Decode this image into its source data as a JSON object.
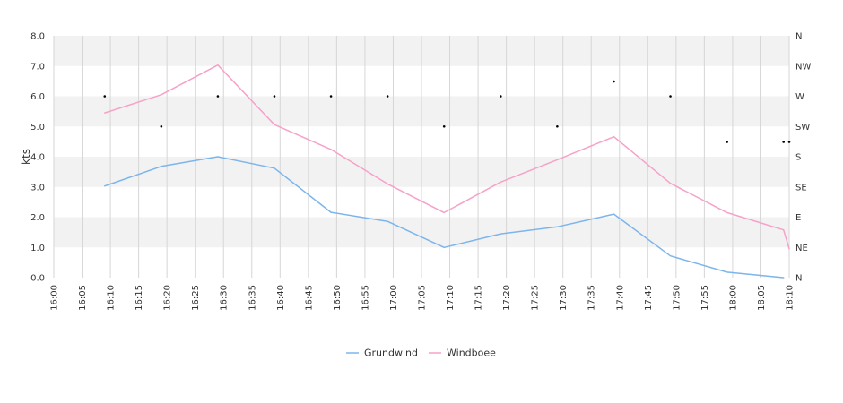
{
  "chart_data": {
    "type": "line",
    "ylabel": "kts",
    "ylim": [
      0,
      8
    ],
    "yticks": [
      "0.0",
      "1.0",
      "2.0",
      "3.0",
      "4.0",
      "5.0",
      "6.0",
      "7.0",
      "8.0"
    ],
    "xlim": [
      "16:00",
      "18:10"
    ],
    "xticks": [
      "16:00",
      "16:05",
      "16:10",
      "16:15",
      "16:20",
      "16:25",
      "16:30",
      "16:35",
      "16:40",
      "16:45",
      "16:50",
      "16:55",
      "17:00",
      "17:05",
      "17:10",
      "17:15",
      "17:20",
      "17:25",
      "17:30",
      "17:35",
      "17:40",
      "17:45",
      "17:50",
      "17:55",
      "18:00",
      "18:05",
      "18:10"
    ],
    "direction_axis": {
      "position": "right",
      "labels": [
        "N",
        "NE",
        "E",
        "SE",
        "S",
        "SW",
        "W",
        "NW",
        "N"
      ],
      "range_degrees": [
        0,
        360
      ]
    },
    "grid": true,
    "legend": "bottom",
    "series": [
      {
        "name": "Grundwind",
        "color": "#7cb5ec",
        "points": [
          [
            "16:09",
            3.03
          ],
          [
            "16:19",
            3.68
          ],
          [
            "16:29",
            4.0
          ],
          [
            "16:39",
            3.62
          ],
          [
            "16:49",
            2.16
          ],
          [
            "16:59",
            1.86
          ],
          [
            "17:09",
            1.0
          ],
          [
            "17:19",
            1.45
          ],
          [
            "17:29",
            1.68
          ],
          [
            "17:39",
            2.1
          ],
          [
            "17:49",
            0.72
          ],
          [
            "17:59",
            0.18
          ],
          [
            "18:09",
            0.0
          ]
        ]
      },
      {
        "name": "Windboee",
        "color": "#f7a1c8",
        "points": [
          [
            "16:09",
            5.45
          ],
          [
            "16:19",
            6.05
          ],
          [
            "16:29",
            7.03
          ],
          [
            "16:39",
            5.06
          ],
          [
            "16:49",
            4.24
          ],
          [
            "16:59",
            3.1
          ],
          [
            "17:09",
            2.15
          ],
          [
            "17:19",
            3.16
          ],
          [
            "17:29",
            3.9
          ],
          [
            "17:39",
            4.66
          ],
          [
            "17:49",
            3.12
          ],
          [
            "17:59",
            2.15
          ],
          [
            "18:09",
            1.58
          ],
          [
            "18:10",
            0.95
          ]
        ]
      }
    ],
    "direction_points": [
      [
        "16:09",
        270
      ],
      [
        "16:19",
        225
      ],
      [
        "16:29",
        270
      ],
      [
        "16:39",
        270
      ],
      [
        "16:49",
        270
      ],
      [
        "16:59",
        270
      ],
      [
        "17:09",
        225
      ],
      [
        "17:19",
        270
      ],
      [
        "17:29",
        225
      ],
      [
        "17:39",
        292
      ],
      [
        "17:49",
        270
      ],
      [
        "17:59",
        202
      ],
      [
        "18:09",
        202
      ],
      [
        "18:10",
        202
      ]
    ]
  }
}
